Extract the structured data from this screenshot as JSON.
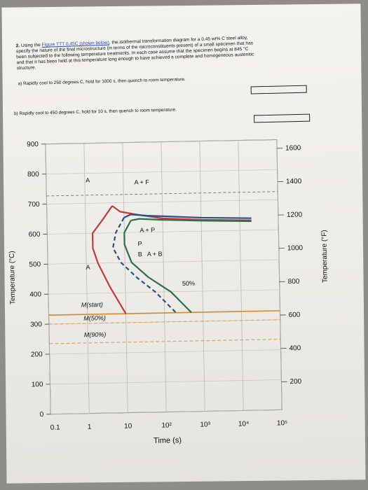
{
  "problem": {
    "number": "2.",
    "line1_prefix": "Using the",
    "figure_link": "Figure TTT 0.45C (shown below)",
    "line1_suffix": ", the isothermal transformation diagram for a 0.45 wt% C steel alloy,",
    "line2": "specify the nature of the final microstructure (in terms of the microconstituents present) of a small specimen that has",
    "line3": "been subjected to the following temperature treatments. In each case assume that the specimen begins at 845 °C",
    "line4": "and that it has been held at this temperature long enough to have achieved a complete and homogeneous austenitic",
    "line5": "structure."
  },
  "questions": [
    {
      "label": "a) Rapidly cool to 250 degrees C, hold for 1000 s, then quench to room temperature.",
      "answer": ""
    },
    {
      "label": "b) Rapidly cool to 450 degrees C, hold for 10 s, then quench to room temperature.",
      "answer": ""
    }
  ],
  "chart_data": {
    "type": "line",
    "title": "",
    "xlabel": "Time (s)",
    "ylabel": "Temperature (°C)",
    "y2label": "Temperature (°F)",
    "x_scale": "log",
    "x_ticks": [
      "0.1",
      "1",
      "10",
      "10²",
      "10³",
      "10⁴",
      "10⁵"
    ],
    "y_ticks": [
      "0",
      "100",
      "200",
      "300",
      "400",
      "500",
      "600",
      "700",
      "800",
      "900"
    ],
    "y2_ticks": [
      "200",
      "400",
      "600",
      "800",
      "1000",
      "1200",
      "1400",
      "1600"
    ],
    "ylim": [
      0,
      900
    ],
    "xlim": [
      0.1,
      100000
    ],
    "series": [
      {
        "name": "",
        "color": "#c43a3a",
        "points": [
          [
            5,
            690
          ],
          [
            8,
            670
          ],
          [
            20,
            660
          ],
          [
            100,
            645
          ],
          [
            1000,
            638
          ],
          [
            20000,
            633
          ]
        ],
        "lower_nose": [
          [
            5,
            690
          ],
          [
            3,
            650
          ],
          [
            1.5,
            600
          ],
          [
            1.5,
            550
          ],
          [
            2,
            500
          ],
          [
            4,
            420
          ],
          [
            10,
            330
          ]
        ]
      },
      {
        "name": "",
        "color": "#2b4f86",
        "points": [
          [
            10,
            650
          ],
          [
            15,
            660
          ],
          [
            40,
            655
          ],
          [
            200,
            650
          ],
          [
            1000,
            645
          ],
          [
            20000,
            640
          ]
        ],
        "lower_nose": [
          [
            10,
            650
          ],
          [
            6,
            600
          ],
          [
            5,
            550
          ],
          [
            8,
            500
          ],
          [
            20,
            450
          ],
          [
            60,
            400
          ],
          [
            200,
            330
          ]
        ]
      },
      {
        "name": "",
        "color": "#2a6f4d",
        "points": [
          [
            15,
            640
          ],
          [
            25,
            645
          ],
          [
            100,
            640
          ],
          [
            1000,
            635
          ],
          [
            20000,
            630
          ]
        ],
        "lower_nose": [
          [
            15,
            640
          ],
          [
            10,
            600
          ],
          [
            10,
            560
          ],
          [
            15,
            500
          ],
          [
            40,
            450
          ],
          [
            150,
            400
          ],
          [
            500,
            330
          ]
        ]
      }
    ],
    "regions": [
      "A",
      "A + F",
      "A + P",
      "P",
      "B",
      "A + B",
      "A"
    ],
    "annotations": [
      "50%",
      "M(start)",
      "M(50%)",
      "M(90%)"
    ],
    "martensite_lines": [
      {
        "label": "M(start)",
        "temp": 330,
        "color": "#d08a3a"
      },
      {
        "label": "M(50%)",
        "temp": 300,
        "color": "#e0a060"
      },
      {
        "label": "M(90%)",
        "temp": 235,
        "color": "#e0a060"
      }
    ],
    "eutectoid_temp": 727,
    "grid": true
  }
}
